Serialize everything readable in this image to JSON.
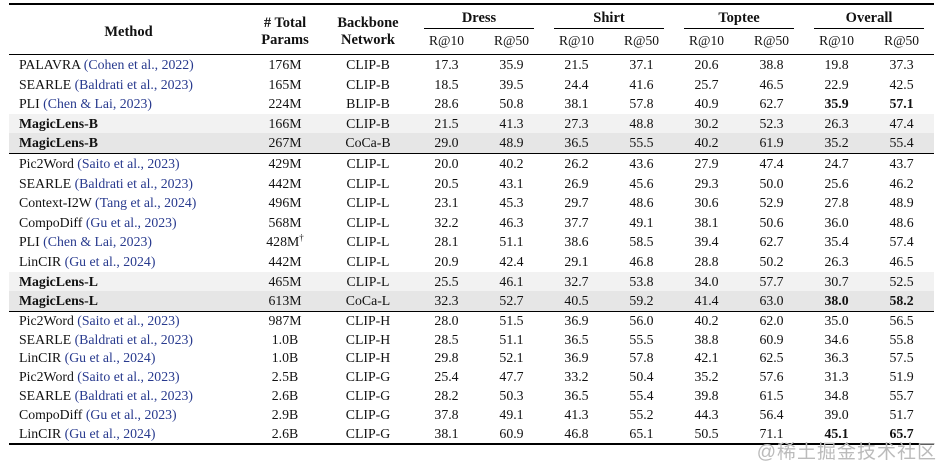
{
  "table": {
    "headers": {
      "method": "Method",
      "params_line1": "# Total",
      "params_line2": "Params",
      "backbone_line1": "Backbone",
      "backbone_line2": "Network",
      "groups": [
        "Dress",
        "Shirt",
        "Toptee",
        "Overall"
      ],
      "metric_r10": "R@10",
      "metric_r50": "R@50"
    },
    "blocks": [
      {
        "rows": [
          {
            "method": "PALAVRA",
            "cite": "(Cohen et al., 2022)",
            "params": "176M",
            "params_sup": "",
            "backbone": "CLIP-B",
            "bold_method": false,
            "shade": "",
            "bold": [],
            "values": [
              "17.3",
              "35.9",
              "21.5",
              "37.1",
              "20.6",
              "38.8",
              "19.8",
              "37.3"
            ]
          },
          {
            "method": "SEARLE",
            "cite": "(Baldrati et al., 2023)",
            "params": "165M",
            "params_sup": "",
            "backbone": "CLIP-B",
            "bold_method": false,
            "shade": "",
            "bold": [],
            "values": [
              "18.5",
              "39.5",
              "24.4",
              "41.6",
              "25.7",
              "46.5",
              "22.9",
              "42.5"
            ]
          },
          {
            "method": "PLI",
            "cite": "(Chen & Lai, 2023)",
            "params": "224M",
            "params_sup": "",
            "backbone": "BLIP-B",
            "bold_method": false,
            "shade": "",
            "bold": [
              6,
              7
            ],
            "values": [
              "28.6",
              "50.8",
              "38.1",
              "57.8",
              "40.9",
              "62.7",
              "35.9",
              "57.1"
            ]
          },
          {
            "method": "MagicLens-B",
            "cite": "",
            "params": "166M",
            "params_sup": "",
            "backbone": "CLIP-B",
            "bold_method": true,
            "shade": "light",
            "bold": [],
            "values": [
              "21.5",
              "41.3",
              "27.3",
              "48.8",
              "30.2",
              "52.3",
              "26.3",
              "47.4"
            ]
          },
          {
            "method": "MagicLens-B",
            "cite": "",
            "params": "267M",
            "params_sup": "",
            "backbone": "CoCa-B",
            "bold_method": true,
            "shade": "dark",
            "bold": [],
            "values": [
              "29.0",
              "48.9",
              "36.5",
              "55.5",
              "40.2",
              "61.9",
              "35.2",
              "55.4"
            ]
          }
        ]
      },
      {
        "rows": [
          {
            "method": "Pic2Word",
            "cite": "(Saito et al., 2023)",
            "params": "429M",
            "params_sup": "",
            "backbone": "CLIP-L",
            "bold_method": false,
            "shade": "",
            "bold": [],
            "values": [
              "20.0",
              "40.2",
              "26.2",
              "43.6",
              "27.9",
              "47.4",
              "24.7",
              "43.7"
            ]
          },
          {
            "method": "SEARLE",
            "cite": "(Baldrati et al., 2023)",
            "params": "442M",
            "params_sup": "",
            "backbone": "CLIP-L",
            "bold_method": false,
            "shade": "",
            "bold": [],
            "values": [
              "20.5",
              "43.1",
              "26.9",
              "45.6",
              "29.3",
              "50.0",
              "25.6",
              "46.2"
            ]
          },
          {
            "method": "Context-I2W",
            "cite": "(Tang et al., 2024)",
            "params": "496M",
            "params_sup": "",
            "backbone": "CLIP-L",
            "bold_method": false,
            "shade": "",
            "bold": [],
            "values": [
              "23.1",
              "45.3",
              "29.7",
              "48.6",
              "30.6",
              "52.9",
              "27.8",
              "48.9"
            ]
          },
          {
            "method": "CompoDiff",
            "cite": "(Gu et al., 2023)",
            "params": "568M",
            "params_sup": "",
            "backbone": "CLIP-L",
            "bold_method": false,
            "shade": "",
            "bold": [],
            "values": [
              "32.2",
              "46.3",
              "37.7",
              "49.1",
              "38.1",
              "50.6",
              "36.0",
              "48.6"
            ]
          },
          {
            "method": "PLI",
            "cite": "(Chen & Lai, 2023)",
            "params": "428M",
            "params_sup": "†",
            "backbone": "CLIP-L",
            "bold_method": false,
            "shade": "",
            "bold": [],
            "values": [
              "28.1",
              "51.1",
              "38.6",
              "58.5",
              "39.4",
              "62.7",
              "35.4",
              "57.4"
            ]
          },
          {
            "method": "LinCIR",
            "cite": "(Gu et al., 2024)",
            "params": "442M",
            "params_sup": "",
            "backbone": "CLIP-L",
            "bold_method": false,
            "shade": "",
            "bold": [],
            "values": [
              "20.9",
              "42.4",
              "29.1",
              "46.8",
              "28.8",
              "50.2",
              "26.3",
              "46.5"
            ]
          },
          {
            "method": "MagicLens-L",
            "cite": "",
            "params": "465M",
            "params_sup": "",
            "backbone": "CLIP-L",
            "bold_method": true,
            "shade": "light",
            "bold": [],
            "values": [
              "25.5",
              "46.1",
              "32.7",
              "53.8",
              "34.0",
              "57.7",
              "30.7",
              "52.5"
            ]
          },
          {
            "method": "MagicLens-L",
            "cite": "",
            "params": "613M",
            "params_sup": "",
            "backbone": "CoCa-L",
            "bold_method": true,
            "shade": "dark",
            "bold": [
              6,
              7
            ],
            "values": [
              "32.3",
              "52.7",
              "40.5",
              "59.2",
              "41.4",
              "63.0",
              "38.0",
              "58.2"
            ]
          }
        ]
      },
      {
        "tight": true,
        "rows": [
          {
            "method": "Pic2Word",
            "cite": "(Saito et al., 2023)",
            "params": "987M",
            "params_sup": "",
            "backbone": "CLIP-H",
            "bold_method": false,
            "shade": "",
            "bold": [],
            "values": [
              "28.0",
              "51.5",
              "36.9",
              "56.0",
              "40.2",
              "62.0",
              "35.0",
              "56.5"
            ]
          },
          {
            "method": "SEARLE",
            "cite": "(Baldrati et al., 2023)",
            "params": "1.0B",
            "params_sup": "",
            "backbone": "CLIP-H",
            "bold_method": false,
            "shade": "",
            "bold": [],
            "values": [
              "28.5",
              "51.1",
              "36.5",
              "55.5",
              "38.8",
              "60.9",
              "34.6",
              "55.8"
            ]
          },
          {
            "method": "LinCIR",
            "cite": "(Gu et al., 2024)",
            "params": "1.0B",
            "params_sup": "",
            "backbone": "CLIP-H",
            "bold_method": false,
            "shade": "",
            "bold": [],
            "values": [
              "29.8",
              "52.1",
              "36.9",
              "57.8",
              "42.1",
              "62.5",
              "36.3",
              "57.5"
            ]
          },
          {
            "method": "Pic2Word",
            "cite": "(Saito et al., 2023)",
            "params": "2.5B",
            "params_sup": "",
            "backbone": "CLIP-G",
            "bold_method": false,
            "shade": "",
            "bold": [],
            "values": [
              "25.4",
              "47.7",
              "33.2",
              "50.4",
              "35.2",
              "57.6",
              "31.3",
              "51.9"
            ]
          },
          {
            "method": "SEARLE",
            "cite": "(Baldrati et al., 2023)",
            "params": "2.6B",
            "params_sup": "",
            "backbone": "CLIP-G",
            "bold_method": false,
            "shade": "",
            "bold": [],
            "values": [
              "28.2",
              "50.3",
              "36.5",
              "55.4",
              "39.8",
              "61.5",
              "34.8",
              "55.7"
            ]
          },
          {
            "method": "CompoDiff",
            "cite": "(Gu et al., 2023)",
            "params": "2.9B",
            "params_sup": "",
            "backbone": "CLIP-G",
            "bold_method": false,
            "shade": "",
            "bold": [],
            "values": [
              "37.8",
              "49.1",
              "41.3",
              "55.2",
              "44.3",
              "56.4",
              "39.0",
              "51.7"
            ]
          },
          {
            "method": "LinCIR",
            "cite": "(Gu et al., 2024)",
            "params": "2.6B",
            "params_sup": "",
            "backbone": "CLIP-G",
            "bold_method": false,
            "shade": "",
            "bold": [
              6,
              7
            ],
            "values": [
              "38.1",
              "60.9",
              "46.8",
              "65.1",
              "50.5",
              "71.1",
              "45.1",
              "65.7"
            ]
          }
        ]
      }
    ]
  },
  "watermark": "@稀土掘金技术社区"
}
